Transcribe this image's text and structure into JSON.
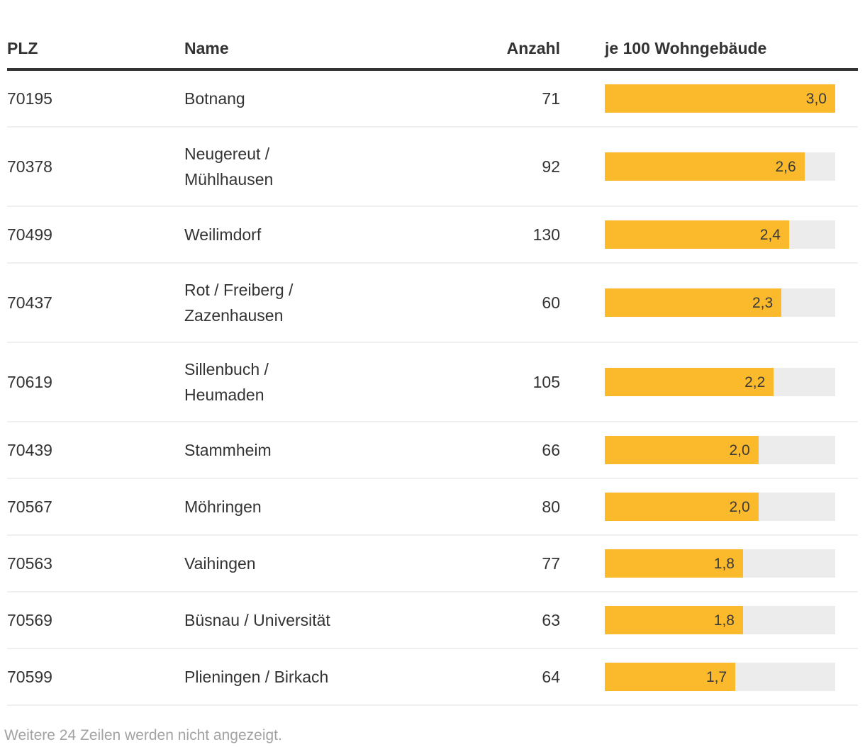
{
  "table": {
    "bar_max": 3.0,
    "columns": [
      {
        "key": "plz",
        "label": "PLZ"
      },
      {
        "key": "name",
        "label": "Name"
      },
      {
        "key": "anzahl",
        "label": "Anzahl"
      },
      {
        "key": "bar",
        "label": "je 100 Wohngebäude"
      }
    ],
    "rows": [
      {
        "plz": "70195",
        "name": "Botnang",
        "anzahl": "71",
        "bar_label": "3,0",
        "bar_value": 3.0
      },
      {
        "plz": "70378",
        "name": "Neugereut /\nMühlhausen",
        "anzahl": "92",
        "bar_label": "2,6",
        "bar_value": 2.6
      },
      {
        "plz": "70499",
        "name": "Weilimdorf",
        "anzahl": "130",
        "bar_label": "2,4",
        "bar_value": 2.4
      },
      {
        "plz": "70437",
        "name": "Rot / Freiberg /\nZazenhausen",
        "anzahl": "60",
        "bar_label": "2,3",
        "bar_value": 2.3
      },
      {
        "plz": "70619",
        "name": "Sillenbuch /\nHeumaden",
        "anzahl": "105",
        "bar_label": "2,2",
        "bar_value": 2.2
      },
      {
        "plz": "70439",
        "name": "Stammheim",
        "anzahl": "66",
        "bar_label": "2,0",
        "bar_value": 2.0
      },
      {
        "plz": "70567",
        "name": "Möhringen",
        "anzahl": "80",
        "bar_label": "2,0",
        "bar_value": 2.0
      },
      {
        "plz": "70563",
        "name": "Vaihingen",
        "anzahl": "77",
        "bar_label": "1,8",
        "bar_value": 1.8
      },
      {
        "plz": "70569",
        "name": "Büsnau / Universität",
        "anzahl": "63",
        "bar_label": "1,8",
        "bar_value": 1.8
      },
      {
        "plz": "70599",
        "name": "Plieningen / Birkach",
        "anzahl": "64",
        "bar_label": "1,7",
        "bar_value": 1.7
      }
    ]
  },
  "footer": {
    "note": "Weitere 24 Zeilen werden nicht angezeigt."
  },
  "colors": {
    "bar_fill": "#fbb92c",
    "bar_track": "#ececec",
    "header_rule": "#333333",
    "text": "#333333",
    "muted": "#a3a3a3",
    "row_separator": "#efefef"
  },
  "chart_data": {
    "type": "table",
    "columns": [
      "PLZ",
      "Name",
      "Anzahl",
      "je 100 Wohngebäude"
    ],
    "rows": [
      [
        "70195",
        "Botnang",
        71,
        3.0
      ],
      [
        "70378",
        "Neugereut / Mühlhausen",
        92,
        2.6
      ],
      [
        "70499",
        "Weilimdorf",
        130,
        2.4
      ],
      [
        "70437",
        "Rot / Freiberg / Zazenhausen",
        60,
        2.3
      ],
      [
        "70619",
        "Sillenbuch / Heumaden",
        105,
        2.2
      ],
      [
        "70439",
        "Stammheim",
        66,
        2.0
      ],
      [
        "70567",
        "Möhringen",
        80,
        2.0
      ],
      [
        "70563",
        "Vaihingen",
        77,
        1.8
      ],
      [
        "70569",
        "Büsnau / Universität",
        63,
        1.8
      ],
      [
        "70599",
        "Plieningen / Birkach",
        64,
        1.7
      ]
    ],
    "bar_column": {
      "label": "je 100 Wohngebäude",
      "min": 0,
      "max": 3.0,
      "decimal_separator": ","
    },
    "hidden_rows_note": "Weitere 24 Zeilen werden nicht angezeigt."
  }
}
